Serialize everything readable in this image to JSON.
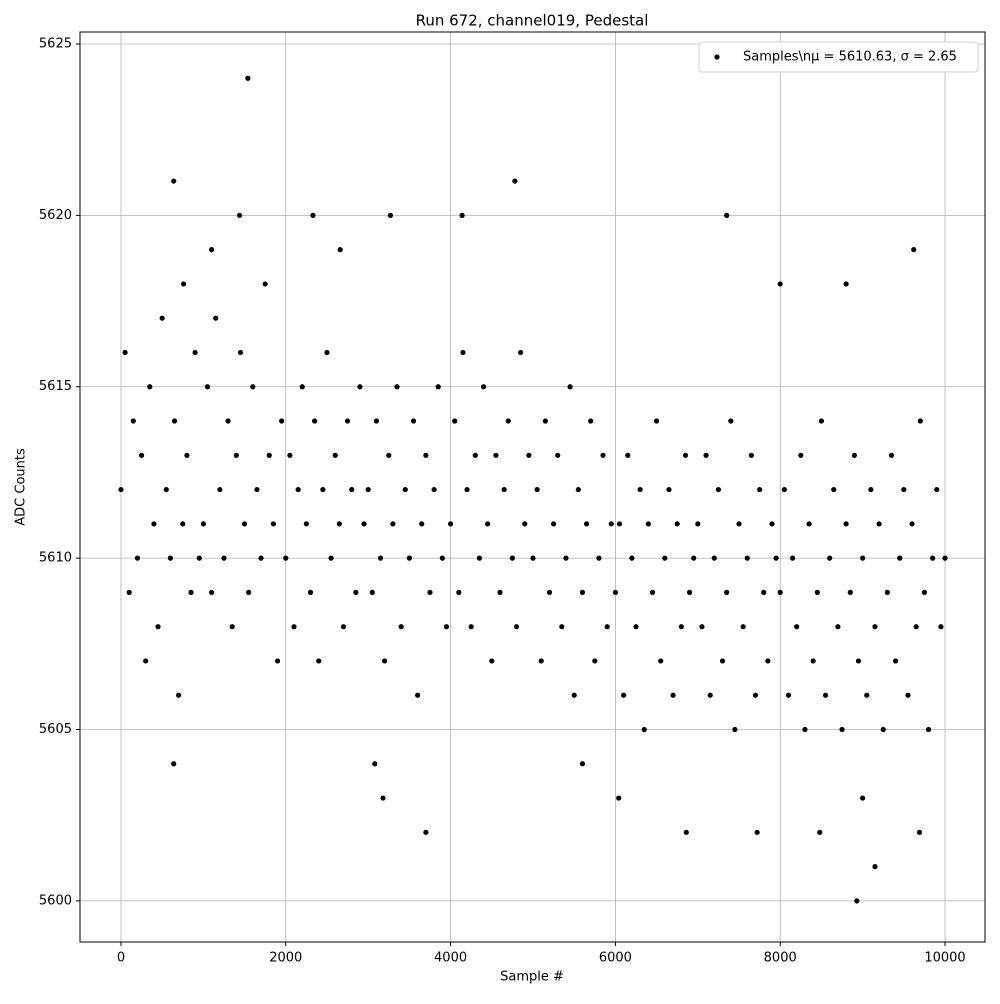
{
  "chart_data": {
    "type": "scatter",
    "title": "Run 672, channel019, Pedestal",
    "x_label": "Sample #",
    "y_label": "ADC Counts",
    "xlim": [
      -497,
      10485
    ],
    "ylim": [
      5598.8,
      5625.35
    ],
    "xticks": [
      0,
      2000,
      4000,
      6000,
      8000,
      10000
    ],
    "yticks": [
      5600,
      5605,
      5610,
      5615,
      5620,
      5625
    ],
    "grid": true,
    "legend_loc": "upper right",
    "series": [
      {
        "name": "Samples\\nμ = 5610.63, σ = 2.65",
        "color": "#000000",
        "x": [
          0,
          50,
          100,
          150,
          200,
          250,
          300,
          350,
          400,
          450,
          500,
          550,
          600,
          650,
          700,
          750,
          800,
          850,
          900,
          950,
          1000,
          1050,
          1100,
          1150,
          1200,
          1250,
          1300,
          1350,
          1400,
          1450,
          1500,
          1550,
          1600,
          1650,
          1700,
          1750,
          1800,
          1850,
          1900,
          1950,
          2000,
          2050,
          2100,
          2150,
          2200,
          2250,
          2300,
          2350,
          2400,
          2450,
          2500,
          2550,
          2600,
          2650,
          2700,
          2750,
          2800,
          2850,
          2900,
          2950,
          3000,
          3050,
          3100,
          3150,
          3200,
          3250,
          3300,
          3350,
          3400,
          3450,
          3500,
          3550,
          3600,
          3650,
          3700,
          3750,
          3800,
          3850,
          3900,
          3950,
          4000,
          4050,
          4100,
          4150,
          4200,
          4250,
          4300,
          4350,
          4400,
          4450,
          4500,
          4550,
          4600,
          4650,
          4700,
          4750,
          4800,
          4850,
          4900,
          4950,
          5000,
          5050,
          5100,
          5150,
          5200,
          5250,
          5300,
          5350,
          5400,
          5450,
          5500,
          5550,
          5600,
          5650,
          5700,
          5750,
          5800,
          5850,
          5900,
          5950,
          6000,
          6050,
          6100,
          6150,
          6200,
          6250,
          6300,
          6350,
          6400,
          6450,
          6500,
          6550,
          6600,
          6650,
          6700,
          6750,
          6800,
          6850,
          6900,
          6950,
          7000,
          7050,
          7100,
          7150,
          7200,
          7250,
          7300,
          7350,
          7400,
          7450,
          7500,
          7550,
          7600,
          7650,
          7700,
          7750,
          7800,
          7850,
          7900,
          7950,
          8000,
          8050,
          8100,
          8150,
          8200,
          8250,
          8300,
          8350,
          8400,
          8450,
          8500,
          8550,
          8600,
          8650,
          8700,
          8750,
          8800,
          8850,
          8900,
          8950,
          9000,
          9050,
          9100,
          9150,
          9200,
          9250,
          9300,
          9350,
          9400,
          9450,
          9500,
          9550,
          9600,
          9650,
          9700,
          9750,
          9800,
          9850,
          9900,
          9950,
          10000,
          1540,
          640,
          4780,
          1440,
          2330,
          3270,
          4140,
          7350,
          8930,
          9150,
          3700,
          6860,
          7720,
          8480,
          9690,
          3180,
          6040,
          9000,
          640,
          3080,
          5600,
          9620,
          2660,
          1100,
          760,
          8000,
          8800
        ],
        "values": [
          5612,
          5616,
          5609,
          5614,
          5610,
          5613,
          5607,
          5615,
          5611,
          5608,
          5617,
          5612,
          5610,
          5614,
          5606,
          5611,
          5613,
          5609,
          5616,
          5610,
          5611,
          5615,
          5609,
          5617,
          5612,
          5610,
          5614,
          5608,
          5613,
          5616,
          5611,
          5609,
          5615,
          5612,
          5610,
          5618,
          5613,
          5611,
          5607,
          5614,
          5610,
          5613,
          5608,
          5612,
          5615,
          5611,
          5609,
          5614,
          5607,
          5612,
          5616,
          5610,
          5613,
          5611,
          5608,
          5614,
          5612,
          5609,
          5615,
          5611,
          5612,
          5609,
          5614,
          5610,
          5607,
          5613,
          5611,
          5615,
          5608,
          5612,
          5610,
          5614,
          5606,
          5611,
          5613,
          5609,
          5612,
          5615,
          5610,
          5608,
          5611,
          5614,
          5609,
          5616,
          5612,
          5608,
          5613,
          5610,
          5615,
          5611,
          5607,
          5613,
          5609,
          5612,
          5614,
          5610,
          5608,
          5616,
          5611,
          5613,
          5610,
          5612,
          5607,
          5614,
          5609,
          5611,
          5613,
          5608,
          5610,
          5615,
          5606,
          5612,
          5609,
          5611,
          5614,
          5607,
          5610,
          5613,
          5608,
          5611,
          5609,
          5611,
          5606,
          5613,
          5610,
          5608,
          5612,
          5605,
          5611,
          5609,
          5614,
          5607,
          5610,
          5612,
          5606,
          5611,
          5608,
          5613,
          5609,
          5610,
          5611,
          5608,
          5613,
          5606,
          5610,
          5612,
          5607,
          5609,
          5614,
          5605,
          5611,
          5608,
          5610,
          5613,
          5606,
          5612,
          5609,
          5607,
          5611,
          5610,
          5609,
          5612,
          5606,
          5610,
          5608,
          5613,
          5605,
          5611,
          5607,
          5609,
          5614,
          5606,
          5610,
          5612,
          5608,
          5605,
          5611,
          5609,
          5613,
          5607,
          5610,
          5606,
          5612,
          5608,
          5611,
          5605,
          5609,
          5613,
          5607,
          5610,
          5612,
          5606,
          5611,
          5608,
          5614,
          5609,
          5605,
          5610,
          5612,
          5608,
          5610,
          5624,
          5621,
          5621,
          5620,
          5620,
          5620,
          5620,
          5620,
          5600,
          5601,
          5602,
          5602,
          5602,
          5602,
          5602,
          5603,
          5603,
          5603,
          5604,
          5604,
          5604,
          5619,
          5619,
          5619,
          5618,
          5618,
          5618
        ]
      }
    ]
  }
}
